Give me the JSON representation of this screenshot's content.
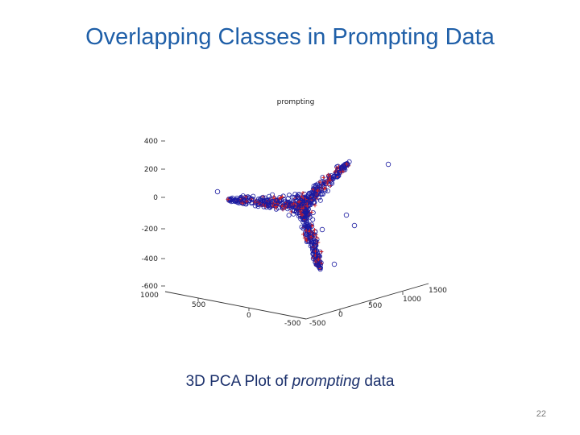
{
  "slide": {
    "title": "Overlapping Classes in Prompting Data",
    "caption_prefix": "3D PCA Plot of ",
    "caption_em": "prompting",
    "caption_suffix": " data",
    "page_number": "22"
  },
  "chart_data": {
    "type": "scatter",
    "title": "prompting",
    "z_ticks": [
      "400",
      "200",
      "0",
      "-200",
      "-400",
      "-600"
    ],
    "x_ticks": [
      "1000",
      "500",
      "0",
      "-500"
    ],
    "y_ticks": [
      "-500",
      "0",
      "500",
      "1000",
      "1500"
    ],
    "grid": false,
    "colors": {
      "class_a": "#1a1aa0",
      "class_b": "#d42020"
    },
    "markers": {
      "class_a": "o",
      "class_b": "+"
    }
  }
}
